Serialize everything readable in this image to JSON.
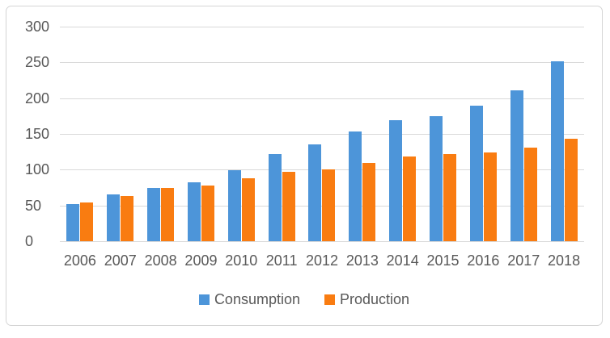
{
  "chart_data": {
    "type": "bar",
    "title": "",
    "xlabel": "",
    "ylabel": "",
    "categories": [
      "2006",
      "2007",
      "2008",
      "2009",
      "2010",
      "2011",
      "2012",
      "2013",
      "2014",
      "2015",
      "2016",
      "2017",
      "2018"
    ],
    "series": [
      {
        "name": "Consumption",
        "color": "#4d95d9",
        "values": [
          52,
          65,
          75,
          82,
          99,
          122,
          135,
          154,
          169,
          175,
          189,
          211,
          252
        ]
      },
      {
        "name": "Production",
        "color": "#f97c11",
        "values": [
          54,
          63,
          74,
          78,
          88,
          97,
          100,
          110,
          118,
          122,
          124,
          131,
          143
        ]
      }
    ],
    "ylim": [
      0,
      300
    ],
    "yticks": [
      0,
      50,
      100,
      150,
      200,
      250,
      300
    ],
    "grid": true,
    "legend_position": "bottom"
  },
  "colors": {
    "grid_line": "#d9d9d9",
    "axis_text": "#595959",
    "frame_border": "#d5d5d5",
    "background": "#ffffff"
  }
}
